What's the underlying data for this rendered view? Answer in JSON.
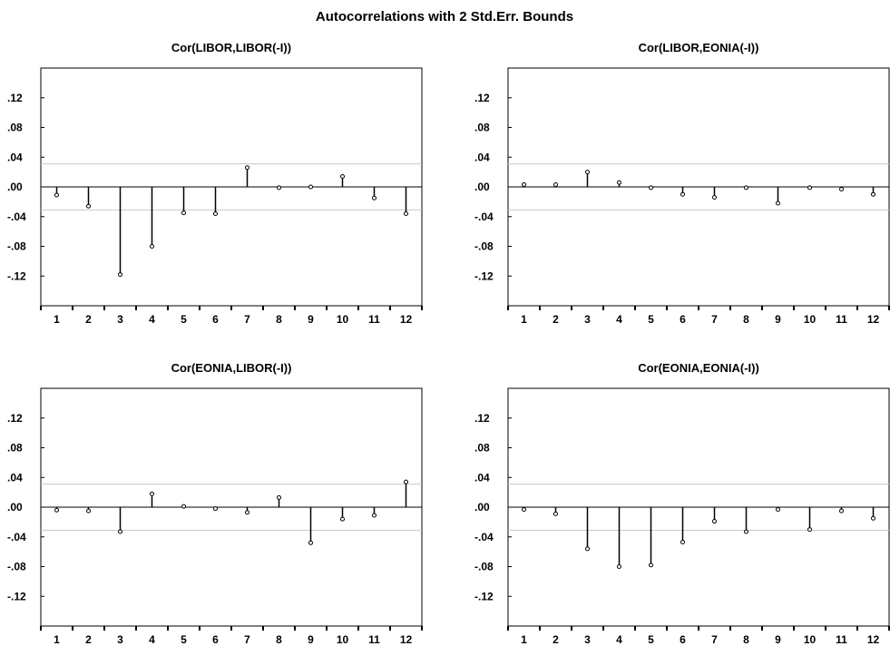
{
  "figure": {
    "title": "Autocorrelations with 2 Std.Err. Bounds"
  },
  "chart_data": [
    {
      "type": "bar",
      "title": "Cor(LIBOR,LIBOR(-I))",
      "categories": [
        "1",
        "2",
        "3",
        "4",
        "5",
        "6",
        "7",
        "8",
        "9",
        "10",
        "11",
        "12"
      ],
      "values": [
        -0.011,
        -0.026,
        -0.118,
        -0.08,
        -0.035,
        -0.036,
        0.026,
        -0.001,
        0.0,
        0.014,
        -0.015,
        -0.036
      ],
      "bounds": [
        -0.031,
        0.031
      ],
      "ylim": [
        -0.16,
        0.16
      ],
      "yticks": [
        0.12,
        0.08,
        0.04,
        0.0,
        -0.04,
        -0.08,
        -0.12
      ],
      "ytick_labels": [
        ".12",
        ".08",
        ".04",
        ".00",
        "-.04",
        "-.08",
        "-.12"
      ]
    },
    {
      "type": "bar",
      "title": "Cor(LIBOR,EONIA(-I))",
      "categories": [
        "1",
        "2",
        "3",
        "4",
        "5",
        "6",
        "7",
        "8",
        "9",
        "10",
        "11",
        "12"
      ],
      "values": [
        0.003,
        0.003,
        0.02,
        0.006,
        -0.001,
        -0.01,
        -0.014,
        -0.001,
        -0.022,
        -0.001,
        -0.003,
        -0.01
      ],
      "bounds": [
        -0.031,
        0.031
      ],
      "ylim": [
        -0.16,
        0.16
      ],
      "yticks": [
        0.12,
        0.08,
        0.04,
        0.0,
        -0.04,
        -0.08,
        -0.12
      ],
      "ytick_labels": [
        ".12",
        ".08",
        ".04",
        ".00",
        "-.04",
        "-.08",
        "-.12"
      ]
    },
    {
      "type": "bar",
      "title": "Cor(EONIA,LIBOR(-I))",
      "categories": [
        "1",
        "2",
        "3",
        "4",
        "5",
        "6",
        "7",
        "8",
        "9",
        "10",
        "11",
        "12"
      ],
      "values": [
        -0.004,
        -0.005,
        -0.033,
        0.018,
        0.001,
        -0.002,
        -0.007,
        0.013,
        -0.048,
        -0.016,
        -0.011,
        0.034
      ],
      "bounds": [
        -0.031,
        0.031
      ],
      "ylim": [
        -0.16,
        0.16
      ],
      "yticks": [
        0.12,
        0.08,
        0.04,
        0.0,
        -0.04,
        -0.08,
        -0.12
      ],
      "ytick_labels": [
        ".12",
        ".08",
        ".04",
        ".00",
        "-.04",
        "-.08",
        "-.12"
      ]
    },
    {
      "type": "bar",
      "title": "Cor(EONIA,EONIA(-I))",
      "categories": [
        "1",
        "2",
        "3",
        "4",
        "5",
        "6",
        "7",
        "8",
        "9",
        "10",
        "11",
        "12"
      ],
      "values": [
        -0.003,
        -0.009,
        -0.056,
        -0.08,
        -0.078,
        -0.047,
        -0.019,
        -0.033,
        -0.003,
        -0.03,
        -0.005,
        -0.015
      ],
      "bounds": [
        -0.031,
        0.031
      ],
      "ylim": [
        -0.16,
        0.16
      ],
      "yticks": [
        0.12,
        0.08,
        0.04,
        0.0,
        -0.04,
        -0.08,
        -0.12
      ],
      "ytick_labels": [
        ".12",
        ".08",
        ".04",
        ".00",
        "-.04",
        "-.08",
        "-.12"
      ]
    }
  ]
}
